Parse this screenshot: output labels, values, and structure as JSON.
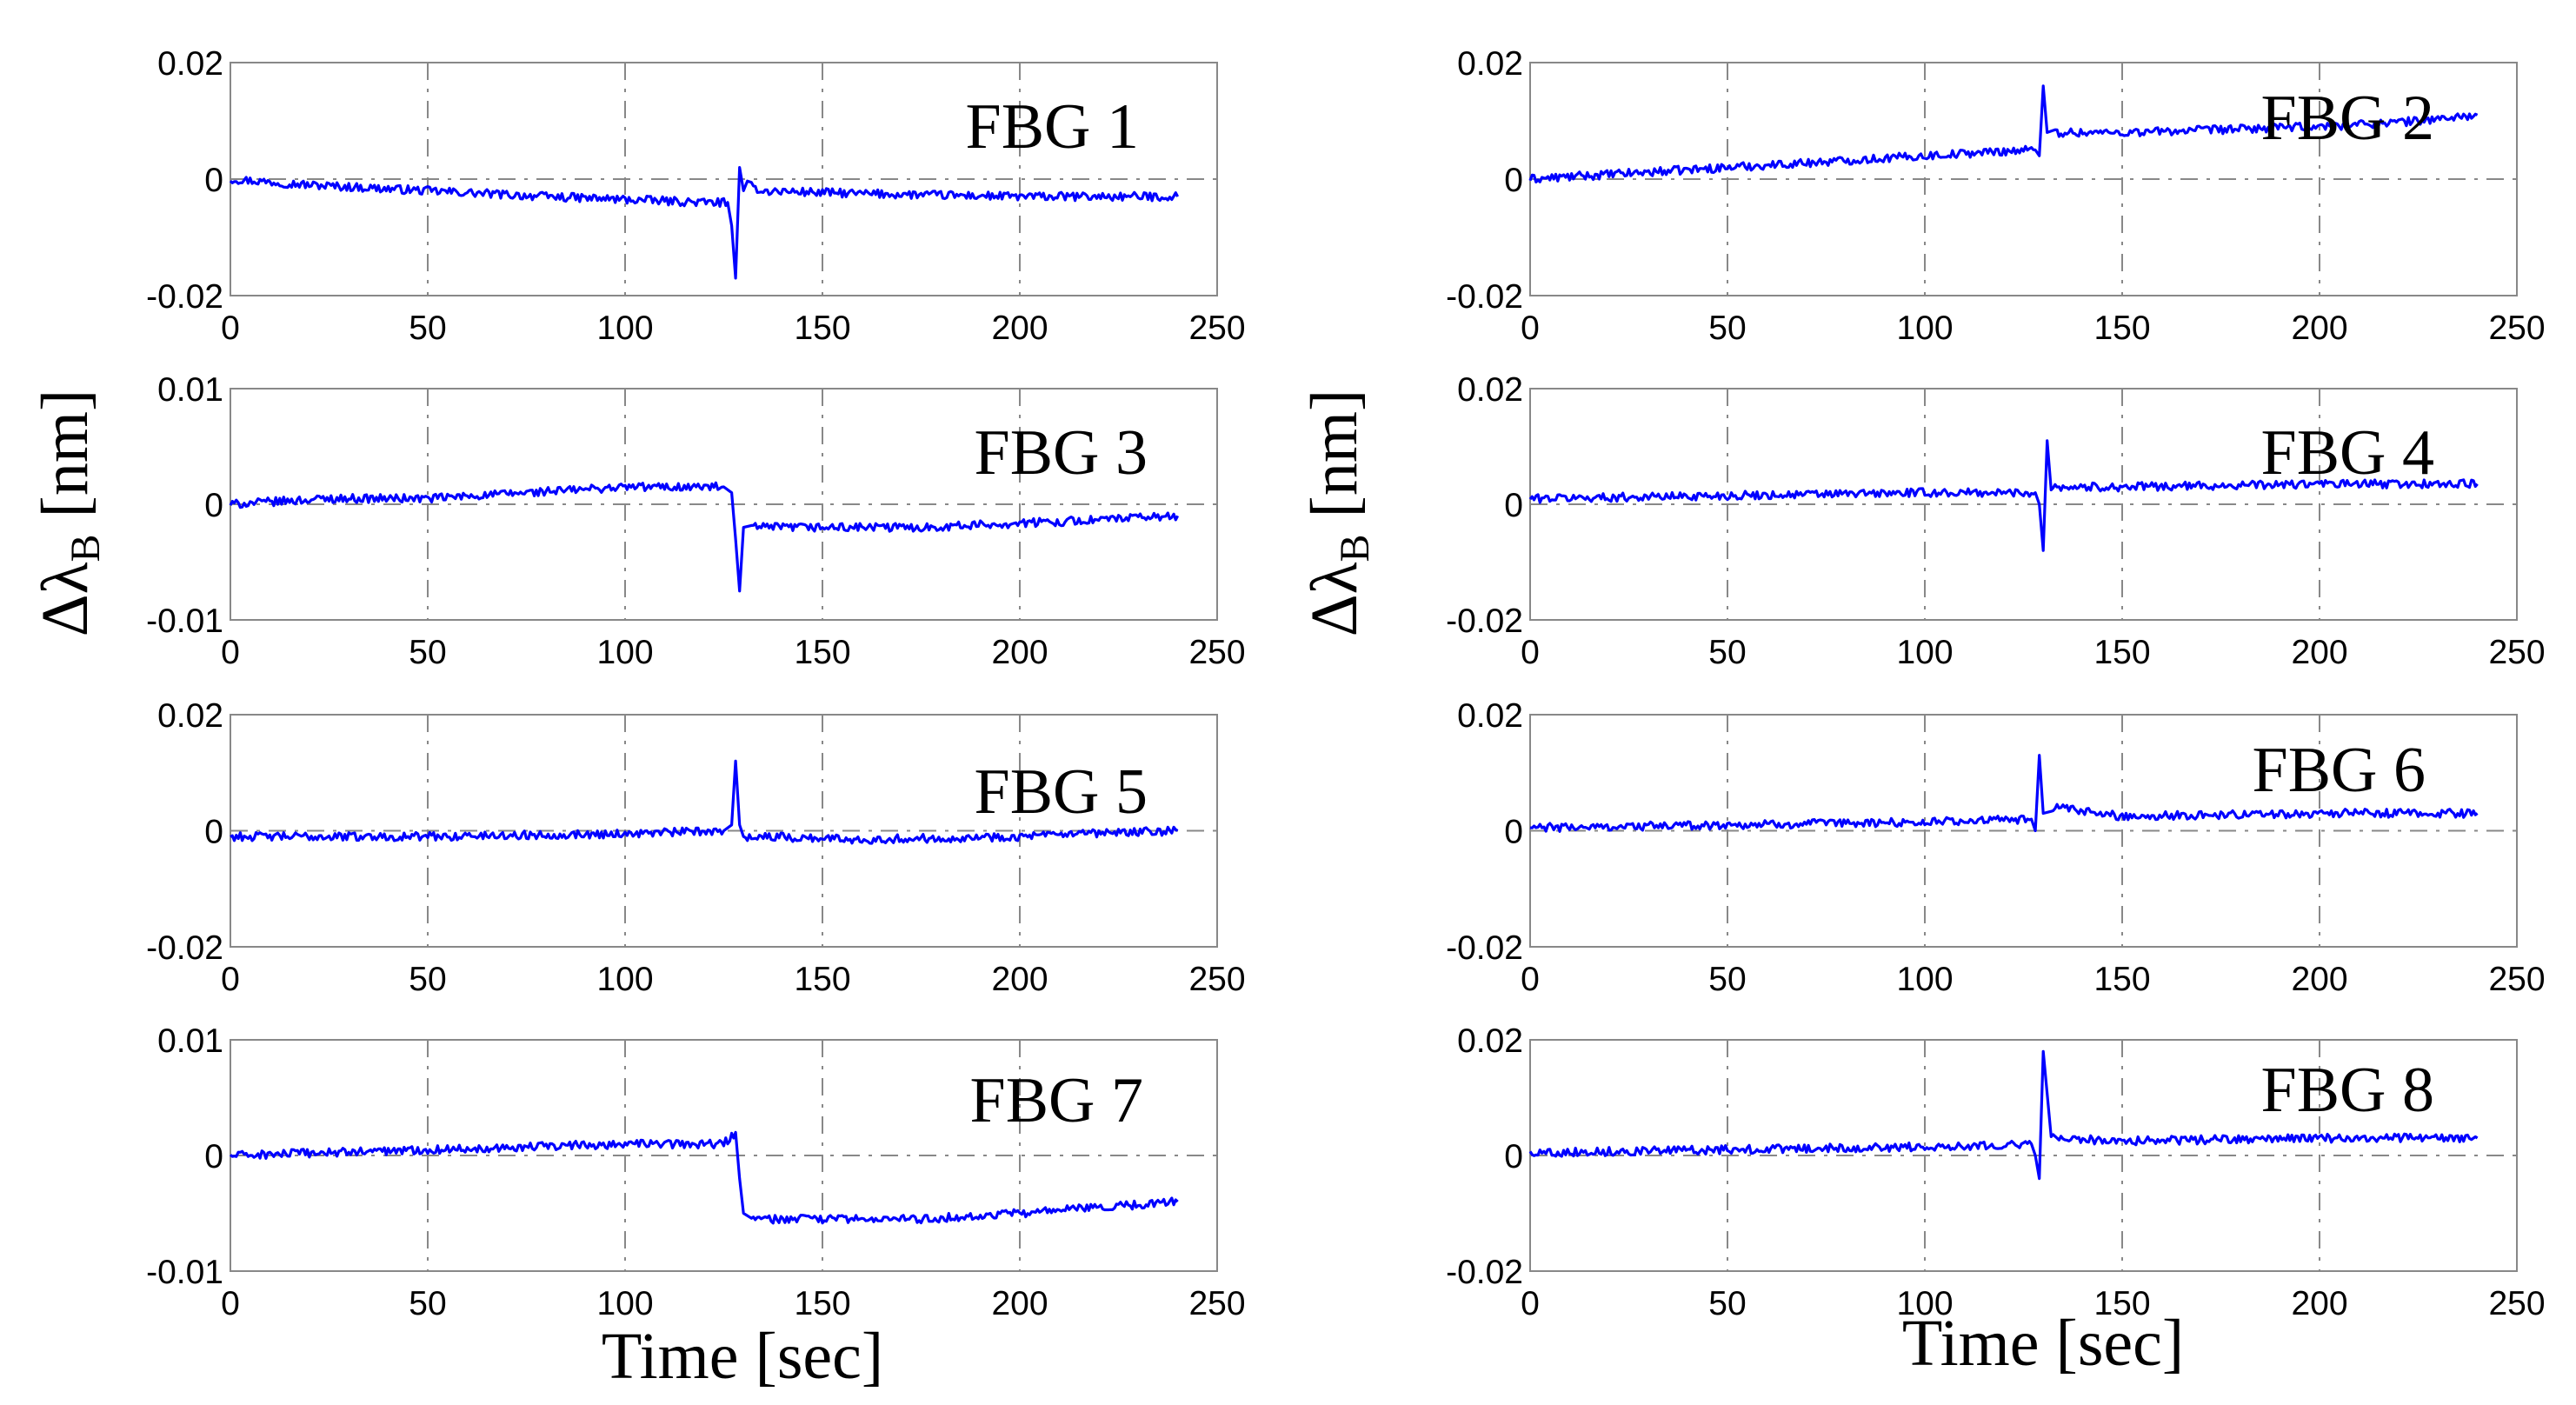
{
  "figure": {
    "xlabel": "Time [sec]",
    "ylabel_main": "Δλ",
    "ylabel_sub": "B",
    "ylabel_unit": " [nm]"
  },
  "colors": {
    "series": "#0000ff",
    "grid": "#888888"
  },
  "chart_data": [
    {
      "type": "line",
      "label": "FBG 1",
      "xlim": [
        0,
        250
      ],
      "ylim": [
        -0.02,
        0.02
      ],
      "xticks": [
        0,
        50,
        100,
        150,
        200,
        250
      ],
      "yticks": [
        -0.02,
        0,
        0.02
      ],
      "ytick_labels": [
        "-0.02",
        "0",
        "0.02"
      ],
      "series": [
        {
          "x": [
            0,
            20,
            50,
            80,
            100,
            120,
            126,
            127,
            128,
            129,
            130,
            131,
            135,
            160,
            200,
            240
          ],
          "y": [
            0.0,
            -0.001,
            -0.002,
            -0.003,
            -0.0035,
            -0.004,
            -0.004,
            -0.008,
            -0.017,
            0.002,
            -0.002,
            -0.001,
            -0.002,
            -0.0025,
            -0.003,
            -0.003
          ]
        }
      ]
    },
    {
      "type": "line",
      "label": "FBG 2",
      "xlim": [
        0,
        250
      ],
      "ylim": [
        -0.02,
        0.02
      ],
      "xticks": [
        0,
        50,
        100,
        150,
        200,
        250
      ],
      "yticks": [
        -0.02,
        0,
        0.02
      ],
      "ytick_labels": [
        "-0.02",
        "0",
        "0.02"
      ],
      "series": [
        {
          "x": [
            0,
            25,
            50,
            75,
            100,
            125,
            128,
            129,
            130,
            131,
            133,
            150,
            175,
            200,
            225,
            240
          ],
          "y": [
            0.0,
            0.001,
            0.002,
            0.003,
            0.004,
            0.005,
            0.005,
            0.004,
            0.016,
            0.008,
            0.008,
            0.008,
            0.0085,
            0.009,
            0.01,
            0.011
          ]
        }
      ]
    },
    {
      "type": "line",
      "label": "FBG 3",
      "xlim": [
        0,
        250
      ],
      "ylim": [
        -0.01,
        0.01
      ],
      "xticks": [
        0,
        50,
        100,
        150,
        200,
        250
      ],
      "yticks": [
        -0.01,
        0,
        0.01
      ],
      "ytick_labels": [
        "-0.01",
        "0",
        "0.01"
      ],
      "series": [
        {
          "x": [
            0,
            25,
            50,
            75,
            100,
            115,
            125,
            127,
            128,
            129,
            130,
            132,
            140,
            175,
            210,
            240
          ],
          "y": [
            0.0,
            0.0005,
            0.0005,
            0.001,
            0.0015,
            0.0015,
            0.0015,
            0.001,
            -0.003,
            -0.0075,
            -0.002,
            -0.002,
            -0.002,
            -0.002,
            -0.0015,
            -0.001
          ]
        }
      ]
    },
    {
      "type": "line",
      "label": "FBG 4",
      "xlim": [
        0,
        250
      ],
      "ylim": [
        -0.02,
        0.02
      ],
      "xticks": [
        0,
        50,
        100,
        150,
        200,
        250
      ],
      "yticks": [
        -0.02,
        0,
        0.02
      ],
      "ytick_labels": [
        "-0.02",
        "0",
        "0.02"
      ],
      "series": [
        {
          "x": [
            0,
            50,
            100,
            128,
            129,
            130,
            131,
            132,
            150,
            200,
            240
          ],
          "y": [
            0.001,
            0.0015,
            0.002,
            0.002,
            0.0,
            -0.008,
            0.011,
            0.003,
            0.003,
            0.0035,
            0.0035
          ]
        }
      ]
    },
    {
      "type": "line",
      "label": "FBG 5",
      "xlim": [
        0,
        250
      ],
      "ylim": [
        -0.02,
        0.02
      ],
      "xticks": [
        0,
        50,
        100,
        150,
        200,
        250
      ],
      "yticks": [
        -0.02,
        0,
        0.02
      ],
      "ytick_labels": [
        "-0.02",
        "0",
        "0.02"
      ],
      "series": [
        {
          "x": [
            0,
            50,
            100,
            125,
            127,
            128,
            129,
            130,
            135,
            160,
            200,
            240
          ],
          "y": [
            -0.001,
            -0.001,
            -0.0005,
            0.0,
            0.001,
            0.012,
            0.001,
            -0.001,
            -0.001,
            -0.0015,
            -0.001,
            0.0
          ]
        }
      ]
    },
    {
      "type": "line",
      "label": "FBG 6",
      "xlim": [
        0,
        250
      ],
      "ylim": [
        -0.02,
        0.02
      ],
      "xticks": [
        0,
        50,
        100,
        150,
        200,
        250
      ],
      "yticks": [
        -0.02,
        0,
        0.02
      ],
      "ytick_labels": [
        "-0.02",
        "0",
        "0.02"
      ],
      "series": [
        {
          "x": [
            0,
            50,
            100,
            127,
            128,
            129,
            130,
            132,
            150,
            200,
            240
          ],
          "y": [
            0.0005,
            0.001,
            0.0015,
            0.002,
            0.0,
            0.013,
            0.003,
            0.004,
            0.0025,
            0.003,
            0.003
          ]
        }
      ]
    },
    {
      "type": "line",
      "label": "FBG 7",
      "xlim": [
        0,
        250
      ],
      "ylim": [
        -0.01,
        0.01
      ],
      "xticks": [
        0,
        50,
        100,
        150,
        200,
        250
      ],
      "yticks": [
        -0.01,
        0,
        0.01
      ],
      "ytick_labels": [
        "-0.01",
        "0",
        "0.01"
      ],
      "series": [
        {
          "x": [
            0,
            50,
            100,
            125,
            128,
            129,
            130,
            132,
            150,
            175,
            200,
            240
          ],
          "y": [
            0.0,
            0.0005,
            0.001,
            0.001,
            0.002,
            -0.002,
            -0.005,
            -0.0055,
            -0.0055,
            -0.0055,
            -0.005,
            -0.004
          ]
        }
      ]
    },
    {
      "type": "line",
      "label": "FBG 8",
      "xlim": [
        0,
        250
      ],
      "ylim": [
        -0.02,
        0.02
      ],
      "xticks": [
        0,
        50,
        100,
        150,
        200,
        250
      ],
      "yticks": [
        -0.02,
        0,
        0.02
      ],
      "ytick_labels": [
        "-0.02",
        "0",
        "0.02"
      ],
      "series": [
        {
          "x": [
            0,
            50,
            100,
            127,
            128,
            129,
            130,
            132,
            150,
            200,
            240
          ],
          "y": [
            0.0005,
            0.001,
            0.0015,
            0.002,
            0.0,
            -0.004,
            0.018,
            0.003,
            0.0025,
            0.003,
            0.003
          ]
        }
      ]
    }
  ]
}
